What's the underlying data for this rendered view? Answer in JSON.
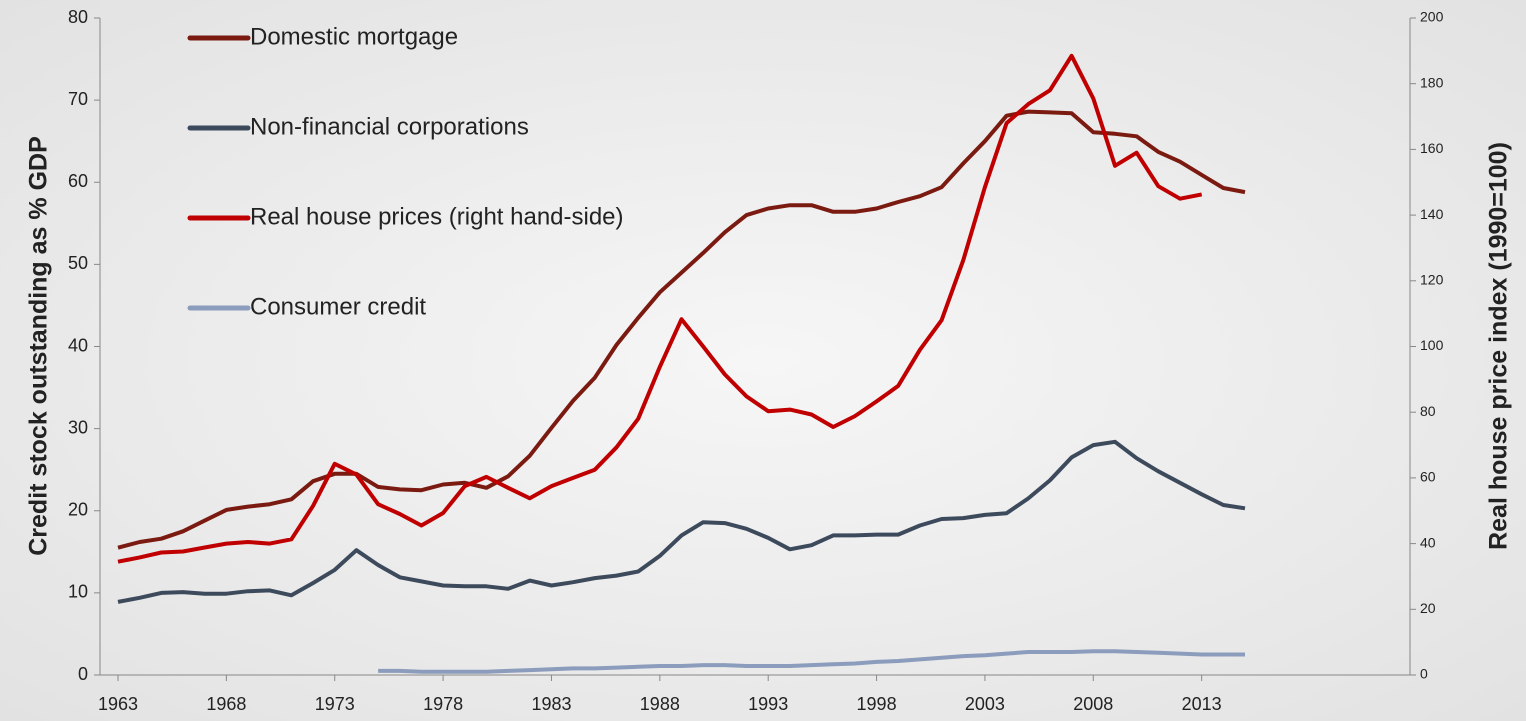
{
  "chart_data": {
    "type": "line",
    "y_label": "Credit stock outstanding  as % GDP",
    "y2_label": "Real house price index (1990=100)",
    "x": [
      1963,
      1964,
      1965,
      1966,
      1967,
      1968,
      1969,
      1970,
      1971,
      1972,
      1973,
      1974,
      1975,
      1976,
      1977,
      1978,
      1979,
      1980,
      1981,
      1982,
      1983,
      1984,
      1985,
      1986,
      1987,
      1988,
      1989,
      1990,
      1991,
      1992,
      1993,
      1994,
      1995,
      1996,
      1997,
      1998,
      1999,
      2000,
      2001,
      2002,
      2003,
      2004,
      2005,
      2006,
      2007,
      2008,
      2009,
      2010,
      2011,
      2012,
      2013,
      2014,
      2015
    ],
    "xlim": [
      1963,
      2015
    ],
    "xticks": [
      1963,
      1968,
      1973,
      1978,
      1983,
      1988,
      1993,
      1998,
      2003,
      2008,
      2013
    ],
    "ylim": [
      0,
      80
    ],
    "yticks": [
      0,
      10,
      20,
      30,
      40,
      50,
      60,
      70,
      80
    ],
    "y2lim": [
      0,
      200
    ],
    "y2ticks": [
      0,
      20,
      40,
      60,
      80,
      100,
      120,
      140,
      160,
      180,
      200
    ],
    "series": [
      {
        "name": "Domestic mortgage",
        "color": "#7b1a10",
        "axis": "y",
        "values": [
          15.5,
          16.2,
          16.6,
          17.5,
          18.8,
          20.1,
          20.5,
          20.8,
          21.4,
          23.6,
          24.5,
          24.5,
          22.9,
          22.6,
          22.5,
          23.2,
          23.4,
          22.8,
          24.2,
          26.7,
          30.1,
          33.4,
          36.2,
          40.2,
          43.5,
          46.6,
          49.0,
          51.4,
          53.9,
          56.0,
          56.8,
          57.2,
          57.2,
          56.4,
          56.4,
          56.8,
          57.6,
          58.3,
          59.4,
          62.3,
          65.0,
          68.1,
          68.6,
          68.5,
          68.4,
          66.1,
          65.9,
          65.6,
          63.7,
          62.5,
          60.9,
          59.3,
          58.8
        ]
      },
      {
        "name": "Non-financial corporations",
        "color": "#3d4a5c",
        "axis": "y",
        "values": [
          8.9,
          9.4,
          10.0,
          10.1,
          9.9,
          9.9,
          10.2,
          10.3,
          9.7,
          11.2,
          12.8,
          15.2,
          13.4,
          11.9,
          11.4,
          10.9,
          10.8,
          10.8,
          10.5,
          11.5,
          10.9,
          11.3,
          11.8,
          12.1,
          12.6,
          14.5,
          17.0,
          18.6,
          18.5,
          17.8,
          16.7,
          15.3,
          15.8,
          17.0,
          17.0,
          17.1,
          17.1,
          18.2,
          19.0,
          19.1,
          19.5,
          19.7,
          21.5,
          23.7,
          26.5,
          28.0,
          28.4,
          26.4,
          24.8,
          23.4,
          22.0,
          20.7,
          20.3
        ]
      },
      {
        "name": "Real house prices (right hand-side)",
        "color": "#c00000",
        "axis": "y2",
        "values": [
          34.5,
          35.8,
          37.3,
          37.6,
          38.8,
          40.0,
          40.5,
          40.0,
          41.3,
          51.5,
          64.3,
          61.0,
          52.0,
          49.0,
          45.5,
          49.3,
          57.5,
          60.3,
          57.0,
          53.8,
          57.5,
          60.0,
          62.5,
          69.3,
          78.0,
          93.8,
          108.3,
          100.0,
          91.5,
          84.8,
          80.3,
          80.8,
          79.3,
          75.5,
          78.8,
          83.3,
          88.0,
          99.0,
          108.0,
          126.3,
          148.5,
          168.0,
          173.8,
          178.0,
          188.5,
          175.5,
          155.0,
          159.0,
          148.8,
          145.0,
          146.3,
          null,
          null
        ]
      },
      {
        "name": "Consumer credit",
        "color": "#8c9cbc",
        "axis": "y",
        "values": [
          null,
          null,
          null,
          null,
          null,
          null,
          null,
          null,
          null,
          null,
          null,
          null,
          0.5,
          0.5,
          0.4,
          0.4,
          0.4,
          0.4,
          0.5,
          0.6,
          0.7,
          0.8,
          0.8,
          0.9,
          1.0,
          1.1,
          1.1,
          1.2,
          1.2,
          1.1,
          1.1,
          1.1,
          1.2,
          1.3,
          1.4,
          1.6,
          1.7,
          1.9,
          2.1,
          2.3,
          2.4,
          2.6,
          2.8,
          2.8,
          2.8,
          2.9,
          2.9,
          2.8,
          2.7,
          2.6,
          2.5,
          2.5,
          2.5
        ]
      }
    ]
  }
}
